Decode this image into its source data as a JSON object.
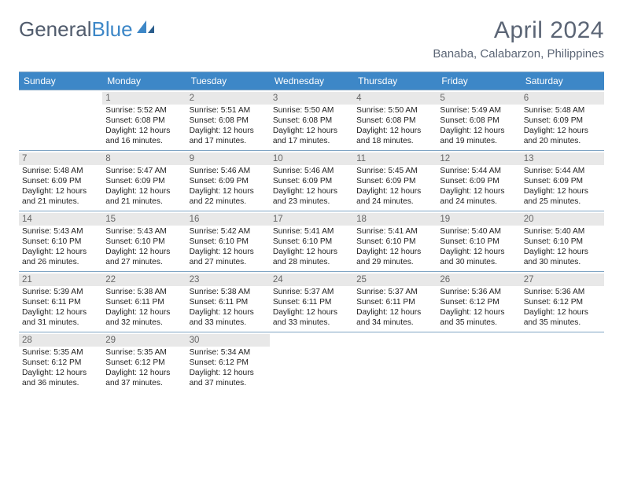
{
  "logo": {
    "general": "General",
    "blue": "Blue"
  },
  "title": "April 2024",
  "location": "Banaba, Calabarzon, Philippines",
  "dow": [
    "Sunday",
    "Monday",
    "Tuesday",
    "Wednesday",
    "Thursday",
    "Friday",
    "Saturday"
  ],
  "colors": {
    "header_bg": "#3d87c7",
    "header_text": "#ffffff",
    "rule": "#7fa4c4",
    "daynum_bg": "#e8e8e8",
    "daynum_text": "#666666",
    "body_text": "#222222",
    "title_text": "#5b6575"
  },
  "sizes": {
    "title": 30,
    "subtitle": 15,
    "dow": 12,
    "daynum": 11.5,
    "info": 10.2
  },
  "calendar": {
    "first_weekday": 1,
    "days": [
      {
        "n": 1,
        "sr": "5:52 AM",
        "ss": "6:08 PM",
        "dl": "12 hours and 16 minutes."
      },
      {
        "n": 2,
        "sr": "5:51 AM",
        "ss": "6:08 PM",
        "dl": "12 hours and 17 minutes."
      },
      {
        "n": 3,
        "sr": "5:50 AM",
        "ss": "6:08 PM",
        "dl": "12 hours and 17 minutes."
      },
      {
        "n": 4,
        "sr": "5:50 AM",
        "ss": "6:08 PM",
        "dl": "12 hours and 18 minutes."
      },
      {
        "n": 5,
        "sr": "5:49 AM",
        "ss": "6:08 PM",
        "dl": "12 hours and 19 minutes."
      },
      {
        "n": 6,
        "sr": "5:48 AM",
        "ss": "6:09 PM",
        "dl": "12 hours and 20 minutes."
      },
      {
        "n": 7,
        "sr": "5:48 AM",
        "ss": "6:09 PM",
        "dl": "12 hours and 21 minutes."
      },
      {
        "n": 8,
        "sr": "5:47 AM",
        "ss": "6:09 PM",
        "dl": "12 hours and 21 minutes."
      },
      {
        "n": 9,
        "sr": "5:46 AM",
        "ss": "6:09 PM",
        "dl": "12 hours and 22 minutes."
      },
      {
        "n": 10,
        "sr": "5:46 AM",
        "ss": "6:09 PM",
        "dl": "12 hours and 23 minutes."
      },
      {
        "n": 11,
        "sr": "5:45 AM",
        "ss": "6:09 PM",
        "dl": "12 hours and 24 minutes."
      },
      {
        "n": 12,
        "sr": "5:44 AM",
        "ss": "6:09 PM",
        "dl": "12 hours and 24 minutes."
      },
      {
        "n": 13,
        "sr": "5:44 AM",
        "ss": "6:09 PM",
        "dl": "12 hours and 25 minutes."
      },
      {
        "n": 14,
        "sr": "5:43 AM",
        "ss": "6:10 PM",
        "dl": "12 hours and 26 minutes."
      },
      {
        "n": 15,
        "sr": "5:43 AM",
        "ss": "6:10 PM",
        "dl": "12 hours and 27 minutes."
      },
      {
        "n": 16,
        "sr": "5:42 AM",
        "ss": "6:10 PM",
        "dl": "12 hours and 27 minutes."
      },
      {
        "n": 17,
        "sr": "5:41 AM",
        "ss": "6:10 PM",
        "dl": "12 hours and 28 minutes."
      },
      {
        "n": 18,
        "sr": "5:41 AM",
        "ss": "6:10 PM",
        "dl": "12 hours and 29 minutes."
      },
      {
        "n": 19,
        "sr": "5:40 AM",
        "ss": "6:10 PM",
        "dl": "12 hours and 30 minutes."
      },
      {
        "n": 20,
        "sr": "5:40 AM",
        "ss": "6:10 PM",
        "dl": "12 hours and 30 minutes."
      },
      {
        "n": 21,
        "sr": "5:39 AM",
        "ss": "6:11 PM",
        "dl": "12 hours and 31 minutes."
      },
      {
        "n": 22,
        "sr": "5:38 AM",
        "ss": "6:11 PM",
        "dl": "12 hours and 32 minutes."
      },
      {
        "n": 23,
        "sr": "5:38 AM",
        "ss": "6:11 PM",
        "dl": "12 hours and 33 minutes."
      },
      {
        "n": 24,
        "sr": "5:37 AM",
        "ss": "6:11 PM",
        "dl": "12 hours and 33 minutes."
      },
      {
        "n": 25,
        "sr": "5:37 AM",
        "ss": "6:11 PM",
        "dl": "12 hours and 34 minutes."
      },
      {
        "n": 26,
        "sr": "5:36 AM",
        "ss": "6:12 PM",
        "dl": "12 hours and 35 minutes."
      },
      {
        "n": 27,
        "sr": "5:36 AM",
        "ss": "6:12 PM",
        "dl": "12 hours and 35 minutes."
      },
      {
        "n": 28,
        "sr": "5:35 AM",
        "ss": "6:12 PM",
        "dl": "12 hours and 36 minutes."
      },
      {
        "n": 29,
        "sr": "5:35 AM",
        "ss": "6:12 PM",
        "dl": "12 hours and 37 minutes."
      },
      {
        "n": 30,
        "sr": "5:34 AM",
        "ss": "6:12 PM",
        "dl": "12 hours and 37 minutes."
      }
    ]
  },
  "labels": {
    "sunrise": "Sunrise:",
    "sunset": "Sunset:",
    "daylight": "Daylight:"
  }
}
